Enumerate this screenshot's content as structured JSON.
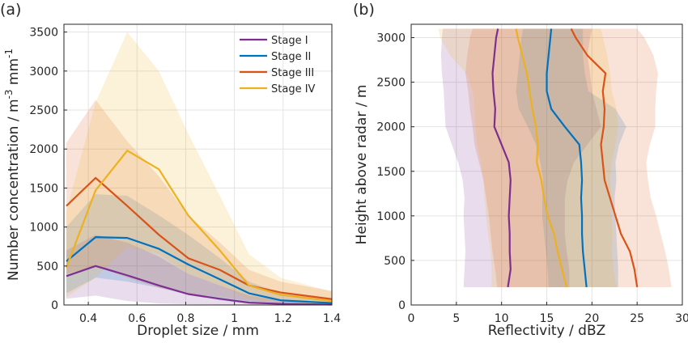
{
  "chart_data": [
    {
      "panel_label": "(a)",
      "type": "line",
      "xlabel": "Droplet size / mm",
      "ylabel": "Number concentration / m^-3 mm^-1",
      "xlim": [
        0.3,
        1.4
      ],
      "ylim": [
        0,
        3600
      ],
      "xticks": [
        0.4,
        0.6,
        0.8,
        1,
        1.2,
        1.4
      ],
      "xtick_labels": [
        "0.4",
        "0.6",
        "0.8",
        "1",
        "1.2",
        "1.4"
      ],
      "yticks": [
        0,
        500,
        1000,
        1500,
        2000,
        2500,
        3000,
        3500
      ],
      "ytick_labels": [
        "0",
        "500",
        "1000",
        "1500",
        "2000",
        "2500",
        "3000",
        "3500"
      ],
      "grid": true,
      "legend_position": "top-right",
      "x": [
        0.31,
        0.43,
        0.56,
        0.69,
        0.81,
        0.94,
        1.06,
        1.19,
        1.4
      ],
      "series": [
        {
          "name": "Stage I",
          "color": "#7e2f8e",
          "values": [
            370,
            500,
            380,
            250,
            140,
            80,
            30,
            15,
            5
          ],
          "lower": [
            80,
            120,
            50,
            20,
            10,
            5,
            0,
            0,
            0
          ],
          "upper": [
            700,
            900,
            800,
            620,
            400,
            250,
            120,
            60,
            30
          ]
        },
        {
          "name": "Stage II",
          "color": "#0072bd",
          "values": [
            560,
            870,
            860,
            720,
            520,
            330,
            150,
            60,
            25
          ],
          "lower": [
            150,
            350,
            300,
            220,
            130,
            60,
            20,
            5,
            0
          ],
          "upper": [
            1000,
            1420,
            1400,
            1150,
            900,
            600,
            300,
            150,
            80
          ]
        },
        {
          "name": "Stage III",
          "color": "#d95319",
          "values": [
            1270,
            1630,
            1270,
            900,
            600,
            450,
            250,
            160,
            75
          ],
          "lower": [
            400,
            500,
            350,
            220,
            150,
            100,
            50,
            30,
            15
          ],
          "upper": [
            2080,
            2630,
            2100,
            1650,
            1150,
            800,
            450,
            300,
            180
          ]
        },
        {
          "name": "Stage IV",
          "color": "#edb120",
          "values": [
            480,
            1470,
            1980,
            1740,
            1150,
            700,
            250,
            130,
            50
          ],
          "lower": [
            100,
            350,
            750,
            650,
            400,
            250,
            80,
            40,
            10
          ],
          "upper": [
            1200,
            2600,
            3500,
            3000,
            2200,
            1400,
            650,
            350,
            170
          ]
        }
      ]
    },
    {
      "panel_label": "(b)",
      "type": "line",
      "xlabel": "Reflectivity / dBZ",
      "ylabel": "Height above radar / m",
      "xlim": [
        0,
        30
      ],
      "ylim": [
        0,
        3150
      ],
      "xticks": [
        0,
        5,
        10,
        15,
        20,
        25,
        30
      ],
      "xtick_labels": [
        "0",
        "5",
        "10",
        "15",
        "20",
        "25",
        "30"
      ],
      "yticks": [
        0,
        500,
        1000,
        1500,
        2000,
        2500,
        3000
      ],
      "ytick_labels": [
        "0",
        "500",
        "1000",
        "1500",
        "2000",
        "2500",
        "3000"
      ],
      "grid": true,
      "y": [
        200,
        400,
        600,
        800,
        1000,
        1200,
        1400,
        1600,
        1800,
        2000,
        2200,
        2400,
        2600,
        2800,
        3000,
        3100
      ],
      "series": [
        {
          "name": "Stage I",
          "color": "#7e2f8e",
          "values": [
            10.7,
            11.0,
            10.9,
            10.9,
            10.8,
            10.9,
            11.0,
            10.8,
            10.0,
            9.2,
            9.3,
            9.1,
            9.0,
            9.2,
            9.4,
            9.6
          ],
          "lower": [
            5.8,
            5.9,
            6.0,
            5.9,
            5.8,
            5.9,
            5.7,
            5.2,
            4.5,
            3.8,
            3.7,
            3.6,
            3.4,
            3.3,
            3.4,
            3.5
          ],
          "upper": [
            17.5,
            17.5,
            17.2,
            17.0,
            17.0,
            17.0,
            17.3,
            18.0,
            19.5,
            21.0,
            20.5,
            20.0,
            19.8,
            19.5,
            19.8,
            20.0
          ]
        },
        {
          "name": "Stage II",
          "color": "#0072bd",
          "values": [
            19.4,
            19.2,
            19.0,
            18.9,
            18.9,
            18.8,
            18.9,
            18.8,
            18.6,
            17.0,
            15.5,
            15.0,
            15.0,
            15.2,
            15.4,
            15.5
          ],
          "lower": [
            15.2,
            15.1,
            14.9,
            14.7,
            14.5,
            14.5,
            14.6,
            14.3,
            13.8,
            12.9,
            11.9,
            11.6,
            11.8,
            12.0,
            12.2,
            12.4
          ],
          "upper": [
            22.9,
            22.9,
            22.8,
            22.7,
            22.6,
            22.5,
            22.7,
            22.6,
            23.0,
            23.8,
            22.6,
            19.6,
            19.2,
            19.0,
            19.0,
            19.0
          ]
        },
        {
          "name": "Stage III",
          "color": "#d95319",
          "values": [
            25.0,
            24.7,
            24.2,
            23.2,
            22.6,
            22.0,
            21.4,
            21.2,
            21.0,
            21.3,
            21.4,
            21.2,
            21.5,
            19.5,
            18.2,
            17.7
          ],
          "lower": [
            9.5,
            9.3,
            9.0,
            8.8,
            8.6,
            8.3,
            8.0,
            7.5,
            7.0,
            6.8,
            6.5,
            6.3,
            6.0,
            6.2,
            6.5,
            6.8
          ],
          "upper": [
            28.8,
            28.5,
            28.1,
            27.6,
            27.1,
            26.5,
            26.2,
            26.0,
            26.4,
            27.0,
            27.0,
            27.1,
            27.3,
            26.8,
            25.8,
            25.0
          ]
        },
        {
          "name": "Stage IV",
          "color": "#edb120",
          "values": [
            17.2,
            16.7,
            16.2,
            15.8,
            15.1,
            14.7,
            14.4,
            13.9,
            14.0,
            13.8,
            13.4,
            13.1,
            12.8,
            12.3,
            11.8,
            11.6
          ],
          "lower": [
            8.9,
            8.9,
            8.8,
            8.5,
            8.3,
            8.1,
            8.0,
            7.7,
            7.3,
            7.1,
            7.0,
            6.8,
            6.1,
            4.3,
            3.2,
            3.0
          ],
          "upper": [
            22.7,
            22.4,
            22.2,
            22.3,
            22.2,
            22.2,
            22.0,
            22.2,
            22.6,
            22.9,
            22.7,
            22.2,
            22.0,
            21.7,
            21.2,
            21.0
          ]
        }
      ]
    }
  ]
}
